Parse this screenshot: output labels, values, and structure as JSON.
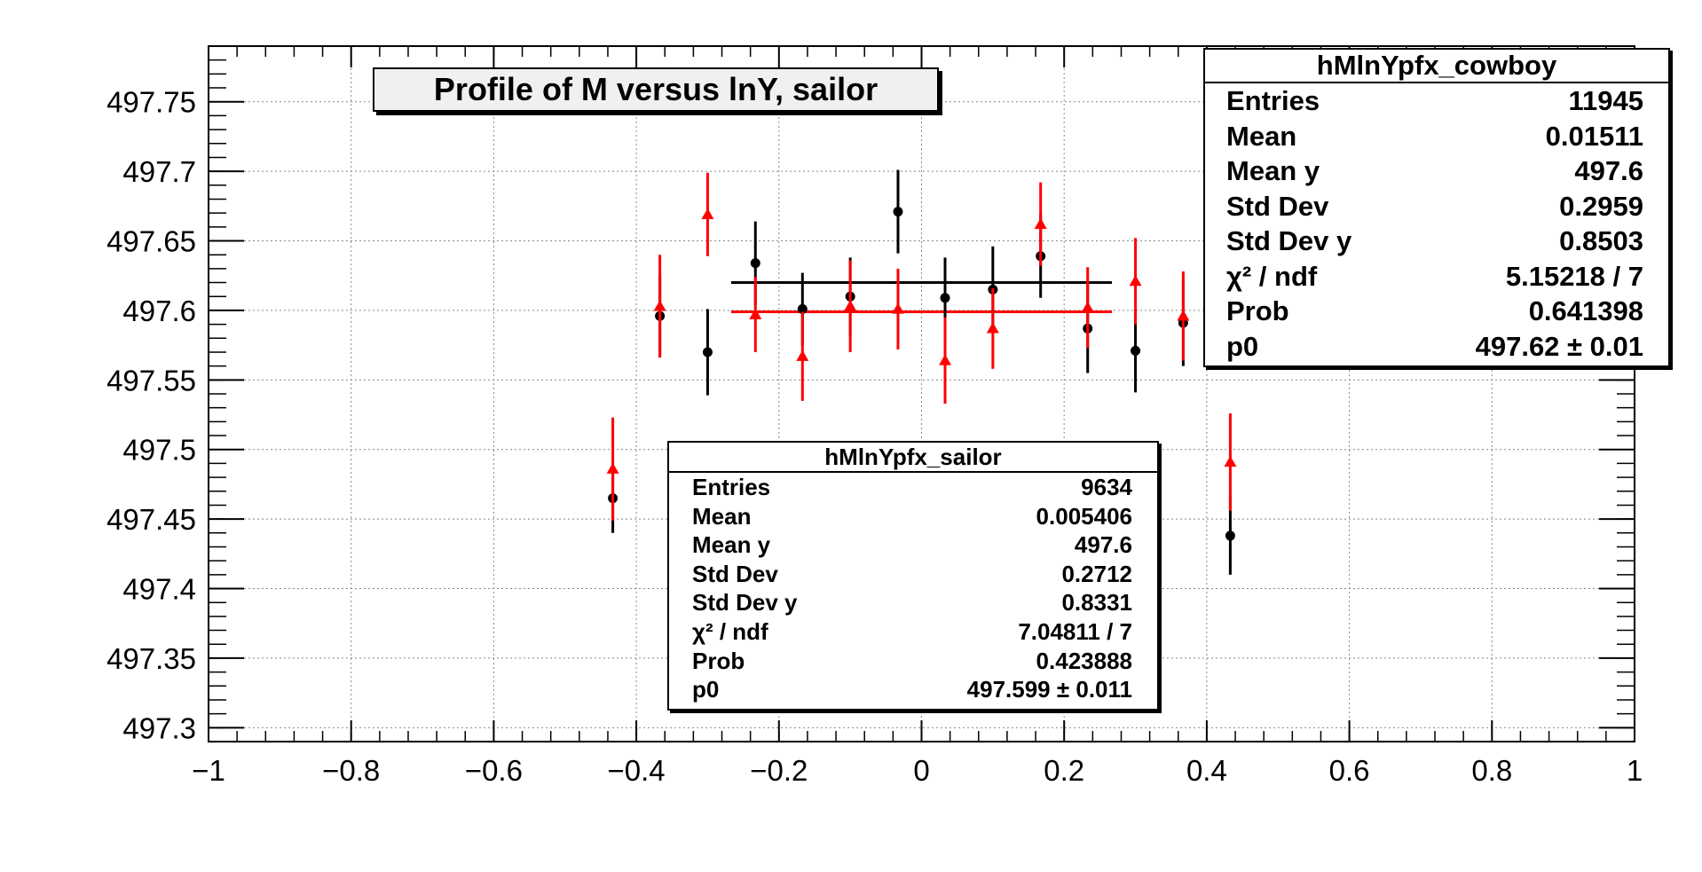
{
  "chart_data": {
    "type": "scatter",
    "title": "Profile of M versus lnY, sailor",
    "xlabel": "",
    "ylabel": "",
    "xlim": [
      -1,
      1
    ],
    "ylim": [
      497.29,
      497.79
    ],
    "grid": true,
    "x_ticks": [
      -1,
      -0.8,
      -0.6,
      -0.4,
      -0.2,
      0,
      0.2,
      0.4,
      0.6,
      0.8,
      1
    ],
    "x_tick_labels": [
      "−1",
      "−0.8",
      "−0.6",
      "−0.4",
      "−0.2",
      "0",
      "0.2",
      "0.4",
      "0.6",
      "0.8",
      "1"
    ],
    "y_ticks": [
      497.3,
      497.35,
      497.4,
      497.45,
      497.5,
      497.55,
      497.6,
      497.65,
      497.7,
      497.75
    ],
    "y_tick_labels": [
      "497.3",
      "497.35",
      "497.4",
      "497.45",
      "497.5",
      "497.55",
      "497.6",
      "497.65",
      "497.7",
      "497.75"
    ],
    "series": [
      {
        "color": "#000000",
        "marker": "circle",
        "points": [
          {
            "x": -0.433,
            "y": 497.465,
            "err": 0.025
          },
          {
            "x": -0.367,
            "y": 497.596,
            "err": 0.029
          },
          {
            "x": -0.3,
            "y": 497.57,
            "err": 0.031
          },
          {
            "x": -0.233,
            "y": 497.634,
            "err": 0.03
          },
          {
            "x": -0.167,
            "y": 497.601,
            "err": 0.026
          },
          {
            "x": -0.1,
            "y": 497.61,
            "err": 0.028
          },
          {
            "x": -0.033,
            "y": 497.671,
            "err": 0.03
          },
          {
            "x": 0.033,
            "y": 497.609,
            "err": 0.029
          },
          {
            "x": 0.1,
            "y": 497.615,
            "err": 0.031
          },
          {
            "x": 0.167,
            "y": 497.639,
            "err": 0.03
          },
          {
            "x": 0.233,
            "y": 497.587,
            "err": 0.032
          },
          {
            "x": 0.3,
            "y": 497.571,
            "err": 0.03
          },
          {
            "x": 0.367,
            "y": 497.591,
            "err": 0.031
          },
          {
            "x": 0.433,
            "y": 497.438,
            "err": 0.028
          }
        ],
        "fit": {
          "x_range": [
            -0.267,
            0.267
          ],
          "y": 497.62
        }
      },
      {
        "color": "#ff0000",
        "marker": "triangle",
        "points": [
          {
            "x": -0.433,
            "y": 497.486,
            "err": 0.037
          },
          {
            "x": -0.367,
            "y": 497.603,
            "err": 0.037
          },
          {
            "x": -0.3,
            "y": 497.669,
            "err": 0.03
          },
          {
            "x": -0.233,
            "y": 497.597,
            "err": 0.027
          },
          {
            "x": -0.167,
            "y": 497.567,
            "err": 0.032
          },
          {
            "x": -0.1,
            "y": 497.603,
            "err": 0.033
          },
          {
            "x": -0.033,
            "y": 497.601,
            "err": 0.029
          },
          {
            "x": 0.033,
            "y": 497.564,
            "err": 0.031
          },
          {
            "x": 0.1,
            "y": 497.587,
            "err": 0.029
          },
          {
            "x": 0.167,
            "y": 497.662,
            "err": 0.03
          },
          {
            "x": 0.233,
            "y": 497.602,
            "err": 0.029
          },
          {
            "x": 0.3,
            "y": 497.621,
            "err": 0.031
          },
          {
            "x": 0.367,
            "y": 497.596,
            "err": 0.032
          },
          {
            "x": 0.433,
            "y": 497.491,
            "err": 0.035
          }
        ],
        "fit": {
          "x_range": [
            -0.267,
            0.267
          ],
          "y": 497.599
        }
      }
    ]
  },
  "stats_cowboy": {
    "title": "hMlnYpfx_cowboy",
    "rows": [
      {
        "label": "Entries",
        "value": "11945"
      },
      {
        "label": "Mean",
        "value": "0.01511"
      },
      {
        "label": "Mean y",
        "value": "497.6"
      },
      {
        "label": "Std Dev",
        "value": "0.2959"
      },
      {
        "label": "Std Dev y",
        "value": "0.8503"
      },
      {
        "label": "χ² / ndf",
        "value": "5.15218 / 7"
      },
      {
        "label": "Prob",
        "value": "0.641398"
      },
      {
        "label": "p0",
        "value": "497.62 ± 0.01"
      }
    ]
  },
  "stats_sailor": {
    "title": "hMlnYpfx_sailor",
    "rows": [
      {
        "label": "Entries",
        "value": "9634"
      },
      {
        "label": "Mean",
        "value": "0.005406"
      },
      {
        "label": "Mean y",
        "value": "497.6"
      },
      {
        "label": "Std Dev",
        "value": "0.2712"
      },
      {
        "label": "Std Dev y",
        "value": "0.8331"
      },
      {
        "label": "χ² / ndf",
        "value": "7.04811 / 7"
      },
      {
        "label": "Prob",
        "value": "0.423888"
      },
      {
        "label": "p0",
        "value": "497.599 ± 0.011"
      }
    ]
  }
}
